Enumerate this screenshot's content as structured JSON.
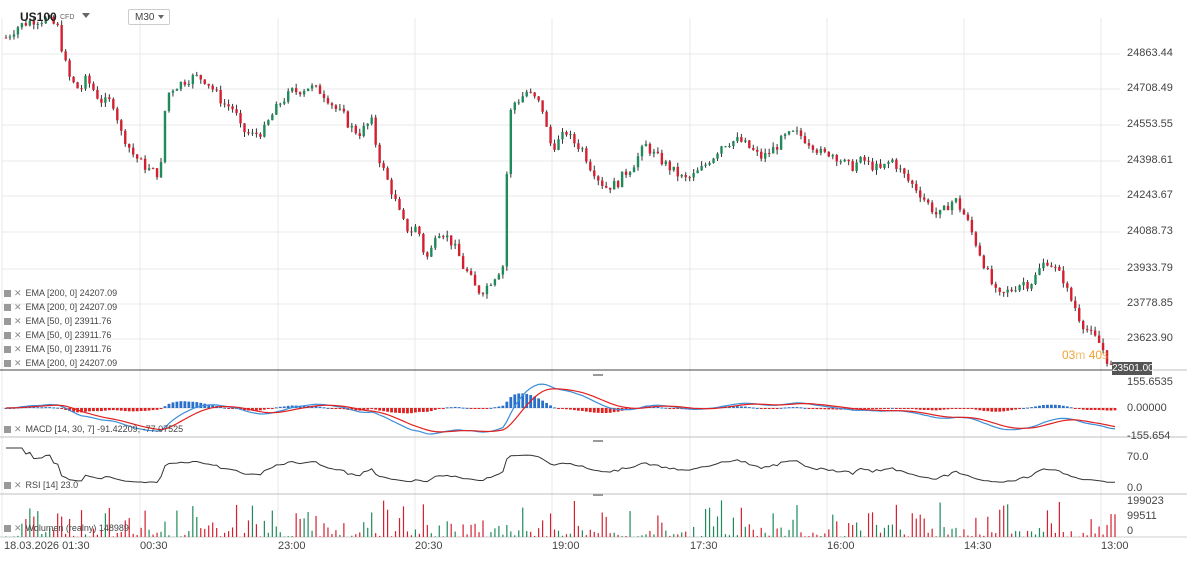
{
  "header": {
    "symbol": "US100",
    "symbol_type": "CFD",
    "timeframe": "M30"
  },
  "price_axis": {
    "labels": [
      "24863.44",
      "24708.49",
      "24553.55",
      "24398.61",
      "24243.67",
      "24088.73",
      "23933.79",
      "23778.85",
      "23623.90"
    ],
    "current_price": "23501.00",
    "countdown_minutes": "03",
    "countdown_m": "m",
    "countdown_seconds": "40",
    "countdown_s": "s"
  },
  "overlays": [
    {
      "label": "EMA [200, 0] 24207.09"
    },
    {
      "label": "EMA [200, 0] 24207.09"
    },
    {
      "label": "EMA [50, 0] 23911.76"
    },
    {
      "label": "EMA [50, 0] 23911.76"
    },
    {
      "label": "EMA [50, 0] 23911.76"
    },
    {
      "label": "EMA [200, 0] 24207.09"
    }
  ],
  "macd": {
    "label": "MACD [14, 30, 7] -91.42209, -77.07525",
    "ticks": [
      "155.6535",
      "0.00000",
      "-155.654"
    ],
    "colors": {
      "hist_pos": "#2a6fc9",
      "hist_neg": "#e02020",
      "macd": "#3b8ed8",
      "signal": "#e02020"
    }
  },
  "rsi": {
    "label": "RSI [14] 23.0",
    "ticks": [
      "70.0",
      "0.0"
    ]
  },
  "volume": {
    "label": "Wolumen (realny) 148989",
    "ticks": [
      "199023",
      "99511",
      "0"
    ]
  },
  "time_axis": {
    "labels": [
      "18.03.2026 01:30",
      "00:30",
      "23:00",
      "20:30",
      "19:00",
      "17:30",
      "16:00",
      "14:30",
      "13:00"
    ]
  },
  "colors": {
    "up": "#1f8a5b",
    "down": "#d32030",
    "wick": "#333333",
    "grid": "#e9e9e9"
  },
  "chart_data": {
    "type": "candlestick",
    "title": "US100",
    "timeframe": "M30",
    "ylim": [
      23501,
      24940
    ],
    "x_tick_labels": [
      "18.03.2026 01:30",
      "00:30",
      "23:00",
      "20:30",
      "19:00",
      "17:30",
      "16:00",
      "14:30",
      "13:00"
    ],
    "y_tick_labels": [
      "24863.44",
      "24708.49",
      "24553.55",
      "24398.61",
      "24243.67",
      "24088.73",
      "23933.79",
      "23778.85",
      "23623.90"
    ],
    "close_path": [
      24860,
      24880,
      24905,
      24915,
      24925,
      24932,
      24930,
      24935,
      24920,
      24905,
      24790,
      24700,
      24665,
      24645,
      24690,
      24660,
      24620,
      24595,
      24600,
      24585,
      24475,
      24440,
      24390,
      24365,
      24340,
      24320,
      24310,
      24300,
      24620,
      24650,
      24665,
      24680,
      24690,
      24700,
      24695,
      24685,
      24655,
      24625,
      24590,
      24580,
      24565,
      24490,
      24470,
      24460,
      24470,
      24475,
      24520,
      24560,
      24595,
      24615,
      24640,
      24640,
      24650,
      24660,
      24650,
      24640,
      24620,
      24590,
      24560,
      24545,
      24500,
      24480,
      24470,
      24500,
      24515,
      24385,
      24320,
      24260,
      24200,
      24130,
      24080,
      24070,
      24090,
      23990,
      23950,
      24060,
      24070,
      24050,
      24020,
      23980,
      23920,
      23890,
      23840,
      23820,
      23840,
      23870,
      23900,
      23930,
      24540,
      24595,
      24610,
      24640,
      24620,
      24600,
      24560,
      24430,
      24420,
      24445,
      24475,
      24440,
      24420,
      24400,
      24340,
      24310,
      24270,
      24250,
      24255,
      24265,
      24300,
      24320,
      24350,
      24390,
      24420,
      24390,
      24370,
      24350,
      24330,
      24310,
      24290,
      24280,
      24290,
      24310,
      24330,
      24360,
      24380,
      24420,
      24430,
      24435,
      24440,
      24430,
      24410,
      24390,
      24370,
      24380,
      24400,
      24420,
      24450,
      24460,
      24470,
      24460,
      24440,
      24425,
      24400,
      24380,
      24390,
      24380,
      24360,
      24340,
      24330,
      24350,
      24360,
      24340,
      24330,
      24320,
      24340,
      24360,
      24330,
      24300,
      24270,
      24250,
      24220,
      24190,
      24160,
      24130,
      24150,
      24180,
      24200,
      24160,
      24120,
      24060,
      24000,
      23940,
      23880,
      23820,
      23800,
      23820,
      23830,
      23850,
      23860,
      23850,
      23880,
      23920,
      23950,
      23930,
      23900,
      23870,
      23800,
      23760,
      23700,
      23670,
      23640,
      23620,
      23580,
      23520,
      23501
    ],
    "series": [
      {
        "name": "EMA [200, 0]",
        "last": 24207.09
      },
      {
        "name": "EMA [50, 0]",
        "last": 23911.76
      }
    ],
    "macd": {
      "params": [
        14,
        30,
        7
      ],
      "macd": -91.42209,
      "signal": -77.07525,
      "range": [
        -155.654,
        155.6535
      ]
    },
    "rsi": {
      "period": 14,
      "value": 23.0,
      "levels": [
        0.0,
        70.0
      ]
    },
    "volume": {
      "last": 148989,
      "range": [
        0,
        199023
      ]
    }
  }
}
